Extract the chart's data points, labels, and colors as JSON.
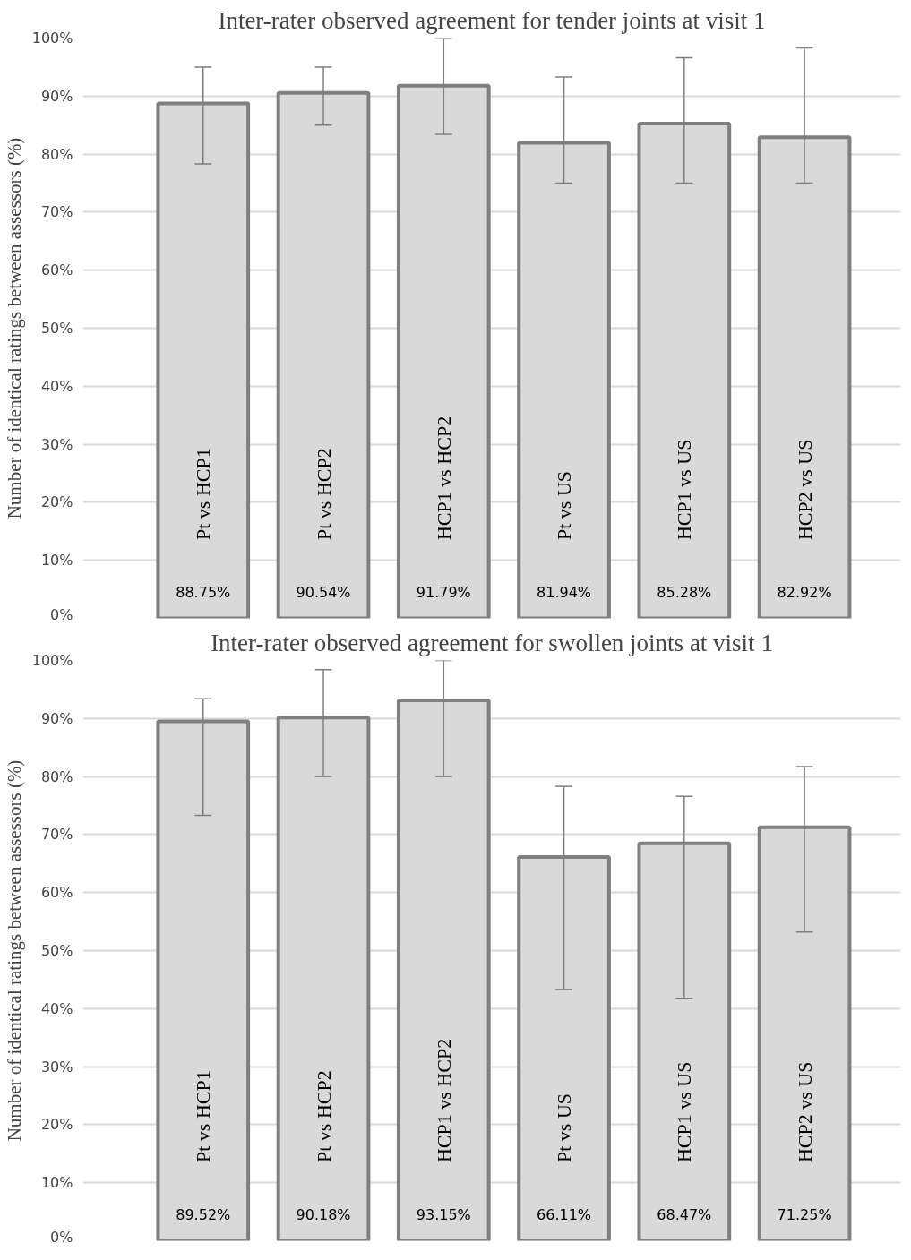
{
  "chart_data": [
    {
      "type": "bar",
      "title": "Inter-rater observed agreement for tender joints at visit 1",
      "ylabel": "Number of identical ratings between assessors (%)",
      "categories": [
        "Pt vs HCP1",
        "Pt vs HCP2",
        "HCP1 vs HCP2",
        "Pt vs US",
        "HCP1 vs US",
        "HCP2 vs US"
      ],
      "values": [
        88.75,
        90.54,
        91.79,
        81.94,
        85.28,
        82.92
      ],
      "value_labels": [
        "88.75%",
        "90.54%",
        "91.79%",
        "81.94%",
        "85.28%",
        "82.92%"
      ],
      "errors": [
        [
          78.3,
          95.0
        ],
        [
          85.0,
          95.0
        ],
        [
          83.4,
          100
        ],
        [
          75.0,
          93.3
        ],
        [
          75.0,
          96.6
        ],
        [
          75.0,
          98.3
        ]
      ],
      "color": "#d9d9d9",
      "ylim": [
        0,
        100
      ],
      "yticks": [
        {
          "value": 0,
          "label": "0%"
        },
        {
          "value": 10,
          "label": "10%"
        },
        {
          "value": 20,
          "label": "20%"
        },
        {
          "value": 30,
          "label": "30%"
        },
        {
          "value": 40,
          "label": "40%"
        },
        {
          "value": 50,
          "label": "50%"
        },
        {
          "value": 60,
          "label": "60%"
        },
        {
          "value": 70,
          "label": "70%"
        },
        {
          "value": 80,
          "label": "80%"
        },
        {
          "value": 90,
          "label": "90%"
        },
        {
          "value": 100,
          "label": "100%"
        }
      ],
      "grid": "y"
    },
    {
      "type": "bar",
      "title": "Inter-rater observed agreement for swollen joints at visit 1",
      "ylabel": "Number of identical ratings between assessors (%)",
      "categories": [
        "Pt vs HCP1",
        "Pt vs HCP2",
        "HCP1 vs HCP2",
        "Pt vs US",
        "HCP1 vs US",
        "HCP2 vs US"
      ],
      "values": [
        89.52,
        90.18,
        93.15,
        66.11,
        68.47,
        71.25
      ],
      "value_labels": [
        "89.52%",
        "90.18%",
        "93.15%",
        "66.11%",
        "68.47%",
        "71.25%"
      ],
      "errors": [
        [
          73.3,
          93.4
        ],
        [
          80.0,
          98.4
        ],
        [
          80.0,
          100
        ],
        [
          43.3,
          78.3
        ],
        [
          41.8,
          76.6
        ],
        [
          53.2,
          81.7
        ]
      ],
      "color": "#d9d9d9",
      "ylim": [
        0,
        100
      ],
      "yticks": [
        {
          "value": 0,
          "label": "0%"
        },
        {
          "value": 10,
          "label": "10%"
        },
        {
          "value": 20,
          "label": "20%"
        },
        {
          "value": 30,
          "label": "30%"
        },
        {
          "value": 40,
          "label": "40%"
        },
        {
          "value": 50,
          "label": "50%"
        },
        {
          "value": 60,
          "label": "60%"
        },
        {
          "value": 70,
          "label": "70%"
        },
        {
          "value": 80,
          "label": "80%"
        },
        {
          "value": 90,
          "label": "90%"
        },
        {
          "value": 100,
          "label": "100%"
        }
      ],
      "grid": "y"
    }
  ]
}
